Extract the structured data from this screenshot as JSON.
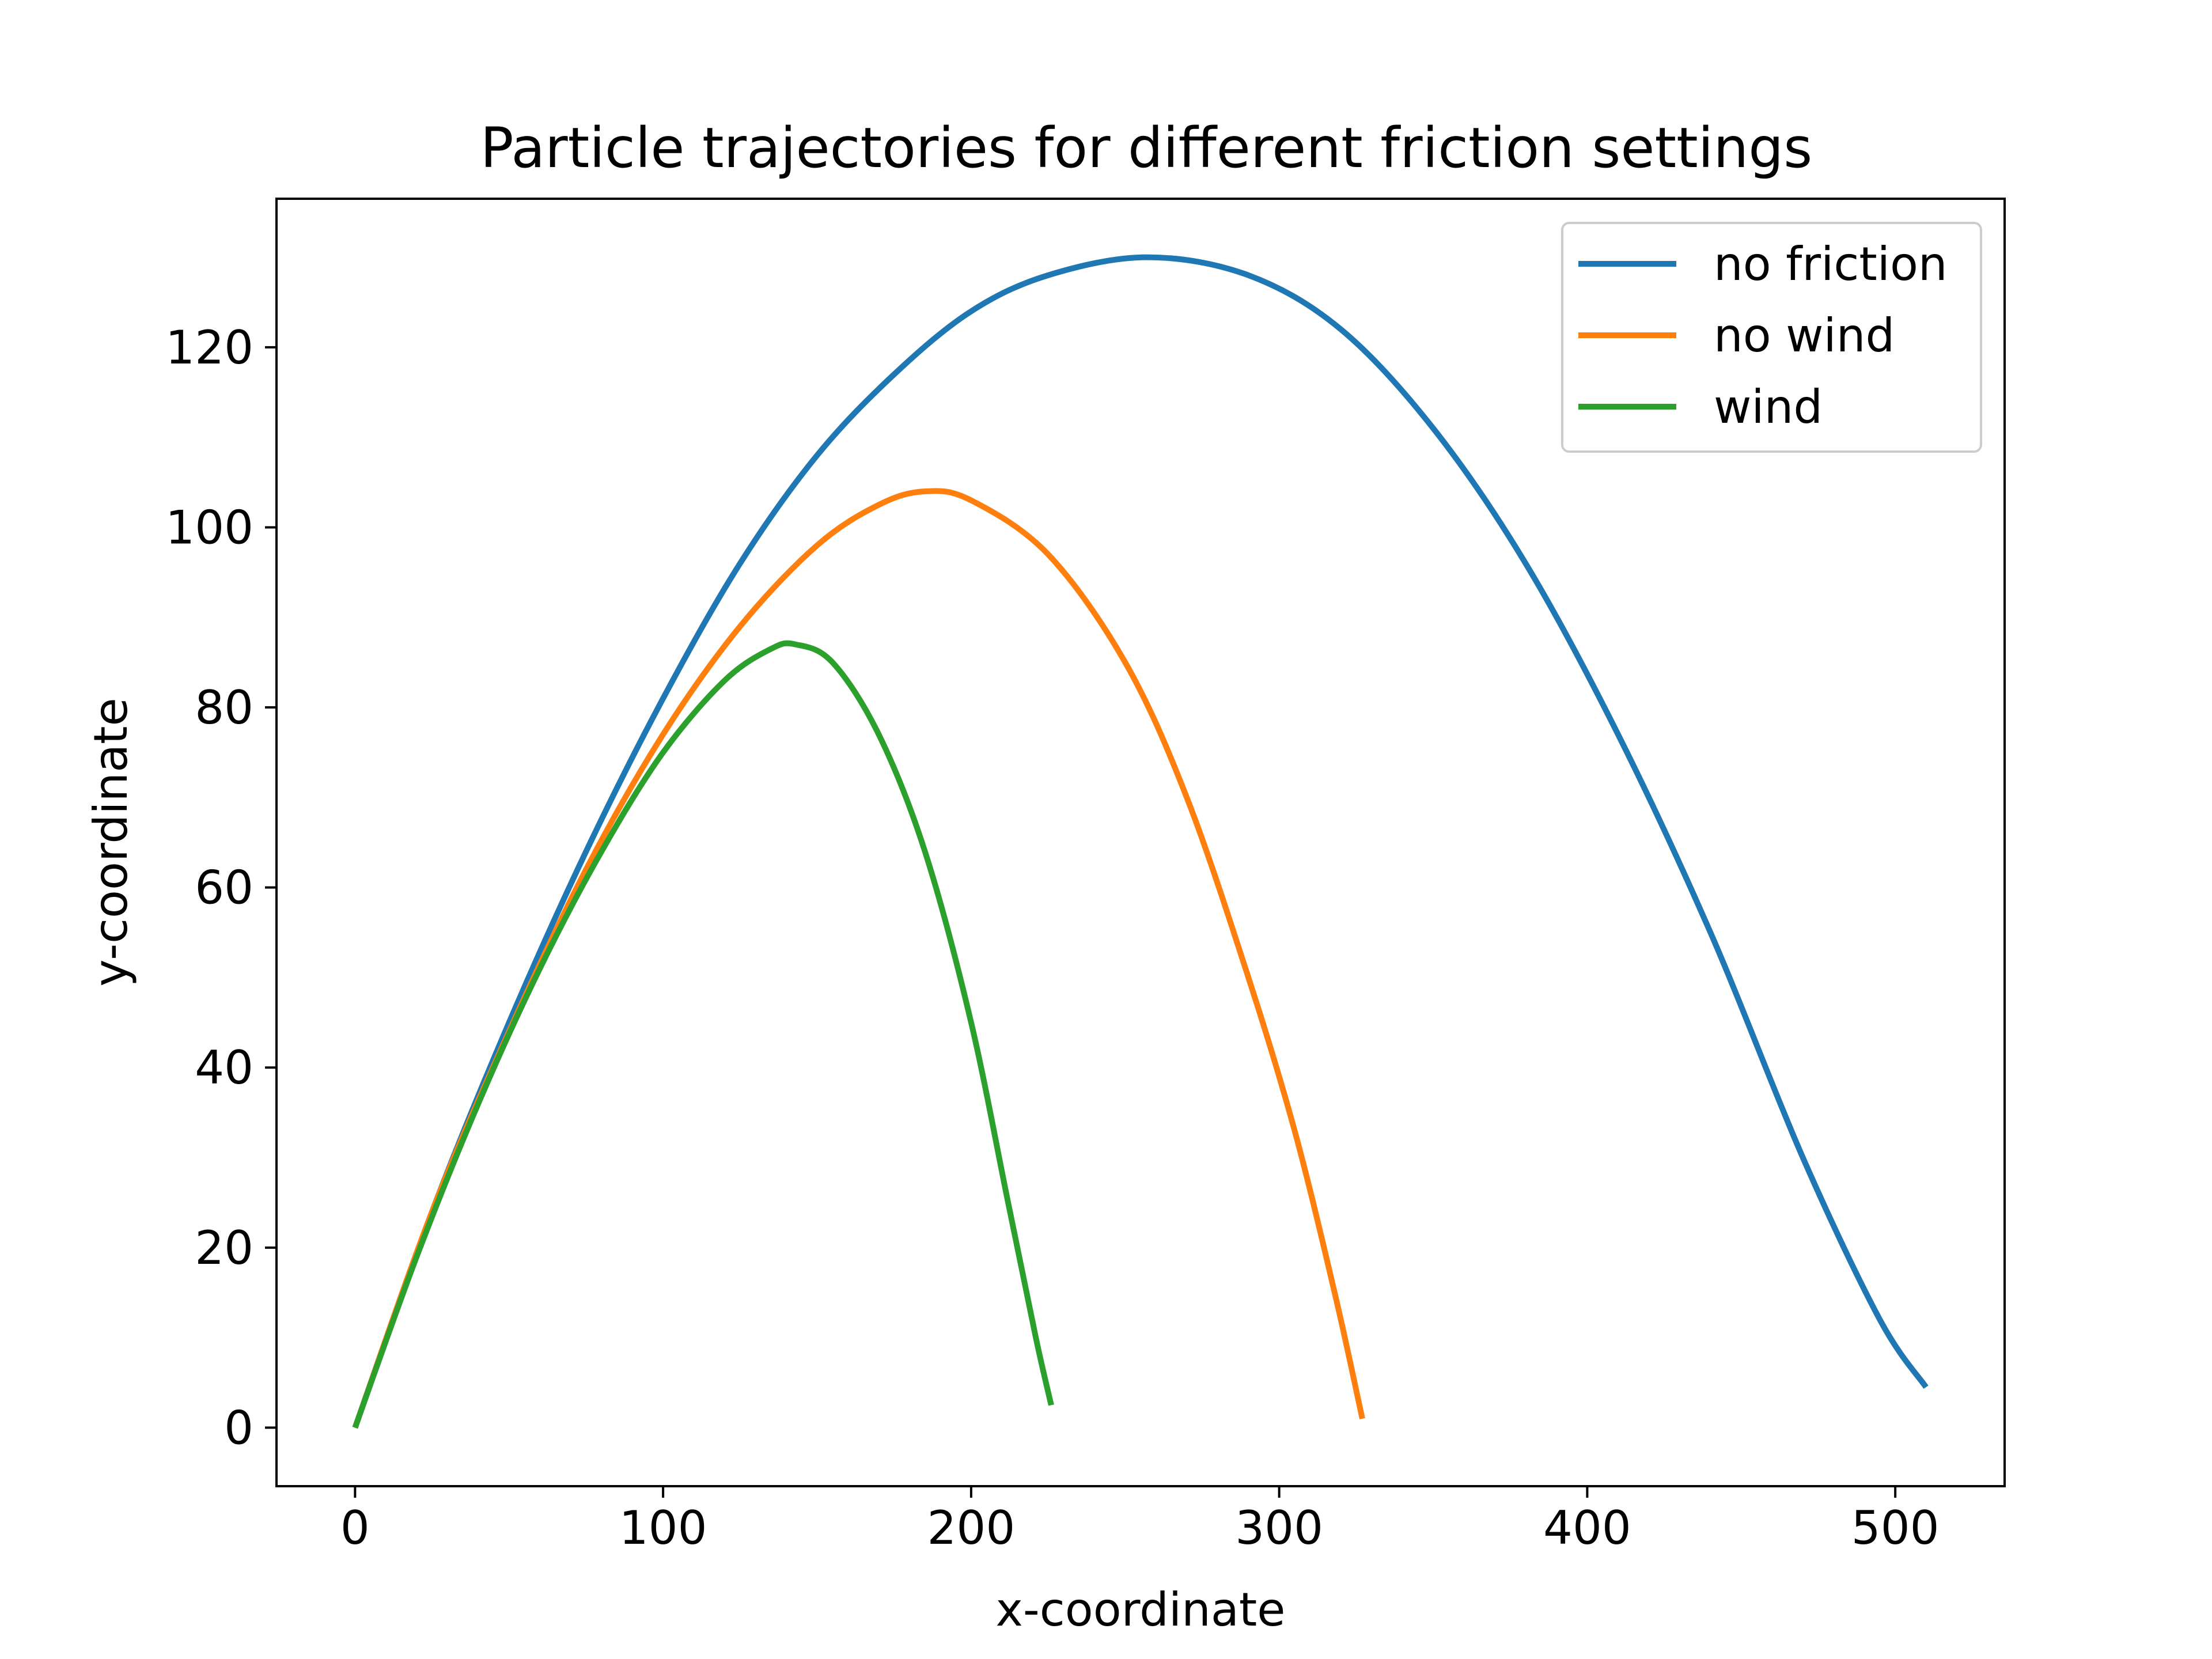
{
  "chart_data": {
    "type": "line",
    "title": "Particle trajectories for different friction settings",
    "xlabel": "x-coordinate",
    "ylabel": "y-coordinate",
    "xlim": [
      -25.5,
      535.5
    ],
    "ylim": [
      -6.5,
      136.5
    ],
    "xticks": [
      0,
      100,
      200,
      300,
      400,
      500
    ],
    "yticks": [
      0,
      20,
      40,
      60,
      80,
      100,
      120
    ],
    "grid": false,
    "legend_position": "upper right",
    "series": [
      {
        "name": "no friction",
        "color": "#1f77b4",
        "points": [
          [
            0,
            0
          ],
          [
            25,
            24
          ],
          [
            50,
            45
          ],
          [
            75,
            64
          ],
          [
            100,
            81
          ],
          [
            125,
            96
          ],
          [
            150,
            108
          ],
          [
            175,
            117
          ],
          [
            200,
            124
          ],
          [
            225,
            128
          ],
          [
            257,
            130
          ],
          [
            290,
            128
          ],
          [
            320,
            122
          ],
          [
            350,
            111
          ],
          [
            380,
            96
          ],
          [
            410,
            77
          ],
          [
            440,
            55
          ],
          [
            470,
            30
          ],
          [
            495,
            12
          ],
          [
            510,
            4.5
          ]
        ]
      },
      {
        "name": "no wind",
        "color": "#ff7f0e",
        "points": [
          [
            0,
            0
          ],
          [
            25,
            24
          ],
          [
            50,
            44
          ],
          [
            75,
            62
          ],
          [
            100,
            77
          ],
          [
            125,
            89
          ],
          [
            150,
            98
          ],
          [
            170,
            102.5
          ],
          [
            185,
            104
          ],
          [
            200,
            103
          ],
          [
            225,
            97
          ],
          [
            250,
            85
          ],
          [
            270,
            70
          ],
          [
            290,
            50
          ],
          [
            305,
            33
          ],
          [
            318,
            15
          ],
          [
            327,
            1
          ]
        ]
      },
      {
        "name": "wind",
        "color": "#2ca02c",
        "points": [
          [
            0,
            0
          ],
          [
            20,
            19
          ],
          [
            40,
            36
          ],
          [
            60,
            51
          ],
          [
            80,
            64
          ],
          [
            100,
            75
          ],
          [
            120,
            83
          ],
          [
            135,
            86.5
          ],
          [
            143,
            87
          ],
          [
            155,
            85
          ],
          [
            170,
            77
          ],
          [
            185,
            64
          ],
          [
            200,
            45
          ],
          [
            212,
            25
          ],
          [
            221,
            10
          ],
          [
            226,
            2.5
          ]
        ]
      }
    ]
  }
}
